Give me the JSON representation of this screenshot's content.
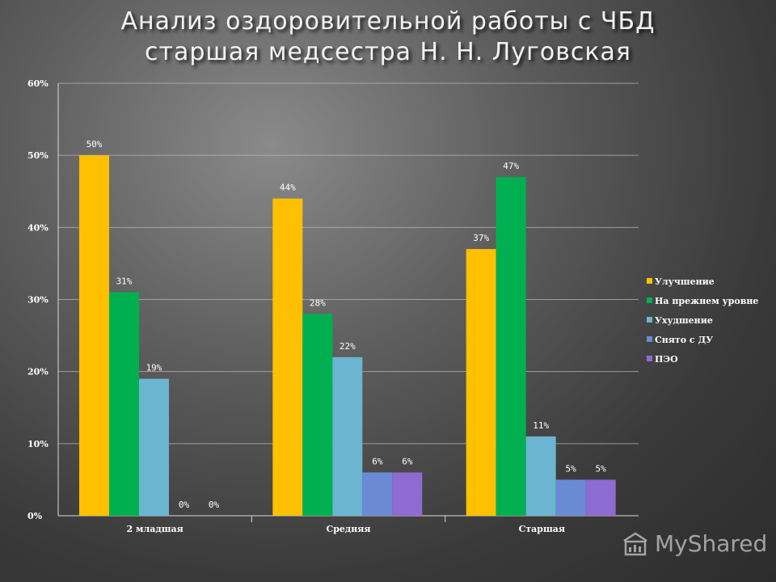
{
  "title": {
    "line1": "Анализ оздоровительной работы с ЧБД",
    "line2": "старшая медсестра Н. Н. Луговская"
  },
  "watermark": {
    "text": "MyShared",
    "icon": "myshared-logo-icon"
  },
  "colors": {
    "series": [
      "#ffc000",
      "#00b050",
      "#6bb5d1",
      "#6b8ad6",
      "#8e6bd1"
    ],
    "grid": "#bdbdbd",
    "axis": "#d9d9d9"
  },
  "chart_data": {
    "type": "bar",
    "title": "",
    "xlabel": "",
    "ylabel": "",
    "ylim": [
      0,
      60
    ],
    "yticks": [
      "0%",
      "10%",
      "20%",
      "30%",
      "40%",
      "50%",
      "60%"
    ],
    "grid": true,
    "legend": "right",
    "categories": [
      "2 младшая",
      "Средняя",
      "Старшая"
    ],
    "series": [
      {
        "name": "Улучшение",
        "values": [
          50,
          44,
          37
        ],
        "labels": [
          "50%",
          "44%",
          "37%"
        ]
      },
      {
        "name": "На прежнем уровне",
        "values": [
          31,
          28,
          47
        ],
        "labels": [
          "31%",
          "28%",
          "47%"
        ]
      },
      {
        "name": "Ухудшение",
        "values": [
          19,
          22,
          11
        ],
        "labels": [
          "19%",
          "22%",
          "11%"
        ]
      },
      {
        "name": "Снято с ДУ",
        "values": [
          0,
          6,
          5
        ],
        "labels": [
          "0%",
          "6%",
          "5%"
        ]
      },
      {
        "name": "ПЭО",
        "values": [
          0,
          6,
          5
        ],
        "labels": [
          "0%",
          "6%",
          "5%"
        ]
      }
    ]
  }
}
